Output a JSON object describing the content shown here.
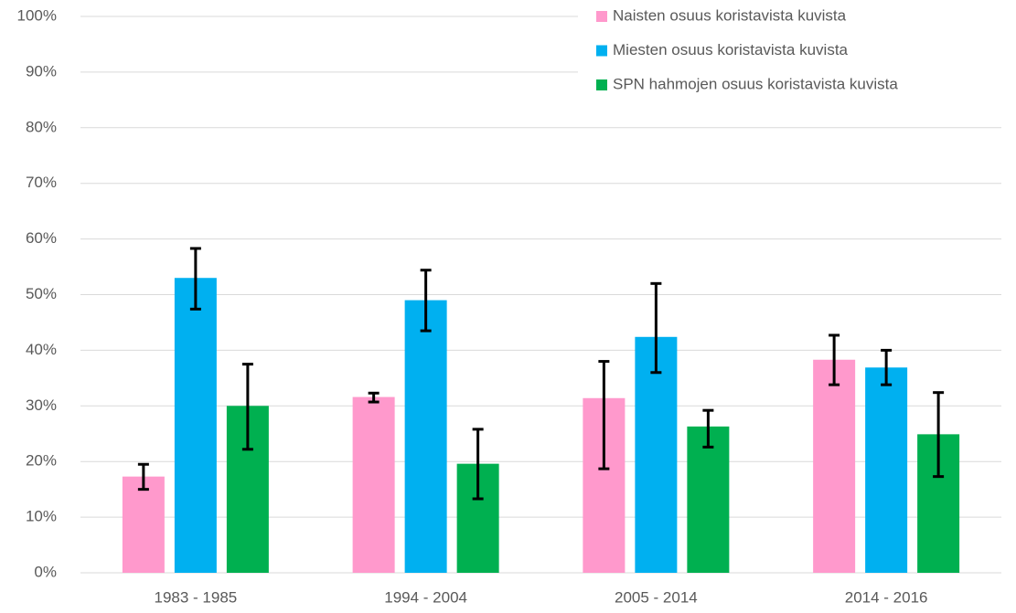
{
  "chart_data": {
    "type": "bar",
    "categories": [
      "1983 - 1985",
      "1994 - 2004",
      "2005 - 2014",
      "2014 - 2016"
    ],
    "series": [
      {
        "name": "Naisten osuus koristavista kuvista",
        "color": "#ff99cc",
        "values": [
          17.3,
          31.6,
          31.4,
          38.3
        ],
        "err_minus": [
          2.3,
          0.9,
          12.7,
          4.5
        ],
        "err_plus": [
          2.2,
          0.7,
          6.6,
          4.4
        ]
      },
      {
        "name": "Miesten osuus koristavista kuvista",
        "color": "#00b0f0",
        "values": [
          53,
          49,
          42.4,
          36.9
        ],
        "err_minus": [
          5.6,
          5.5,
          6.4,
          3.1
        ],
        "err_plus": [
          5.3,
          5.4,
          9.6,
          3.1
        ]
      },
      {
        "name": "SPN hahmojen osuus koristavista kuvista",
        "color": "#00b050",
        "values": [
          30,
          19.6,
          26.3,
          24.9
        ],
        "err_minus": [
          7.8,
          6.3,
          3.7,
          7.6
        ],
        "err_plus": [
          7.5,
          6.2,
          2.9,
          7.5
        ]
      }
    ],
    "ylim": [
      0,
      100
    ],
    "yticks": [
      {
        "value": 0,
        "label": "0%"
      },
      {
        "value": 10,
        "label": "10%"
      },
      {
        "value": 20,
        "label": "20%"
      },
      {
        "value": 30,
        "label": "30%"
      },
      {
        "value": 40,
        "label": "40%"
      },
      {
        "value": 50,
        "label": "50%"
      },
      {
        "value": 60,
        "label": "60%"
      },
      {
        "value": 70,
        "label": "70%"
      },
      {
        "value": 80,
        "label": "80%"
      },
      {
        "value": 90,
        "label": "90%"
      },
      {
        "value": 100,
        "label": "100%"
      }
    ],
    "grid": true,
    "legend": "top-right"
  }
}
